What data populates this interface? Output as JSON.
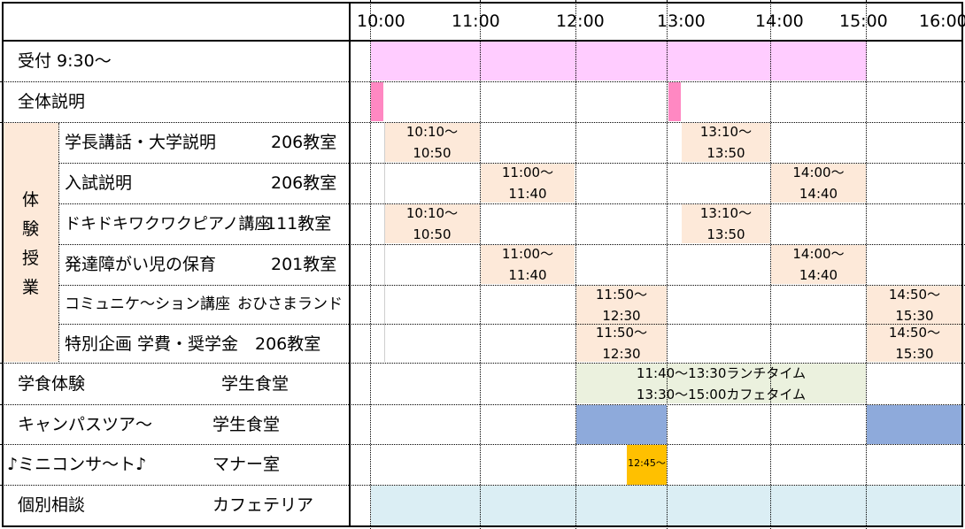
{
  "times": [
    "10:00",
    "11:00",
    "12:00",
    "13:00",
    "14:00",
    "15:00",
    "16:00"
  ],
  "rows": {
    "reception": "受付 9:30～",
    "overall": "全体説明",
    "taiken_label": [
      "体",
      "験",
      "授",
      "業"
    ],
    "lecture1": {
      "name": "学長講話・大学説明",
      "room": "206教室"
    },
    "lecture2": {
      "name": "入試説明",
      "room": "206教室"
    },
    "lecture3": {
      "name": "ドキドキワクワクピアノ講座",
      "room": "111教室"
    },
    "lecture4": {
      "name": "発達障がい児の保育",
      "room": "201教室"
    },
    "lecture5": {
      "name": "コミュニケ～ション講座",
      "room": "おひさまランド"
    },
    "lecture6": {
      "name": "特別企画 学費・奨学金",
      "room": "206教室"
    },
    "cafeteria": {
      "name": "学食体験",
      "room": "学生食堂"
    },
    "tour": {
      "name": "キャンパスツア～",
      "room": "学生食堂"
    },
    "concert": {
      "name": "♪ミニコンサ～ト♪",
      "room": "マナー室"
    },
    "consult": {
      "name": "個別相談",
      "room": "カフェテリア"
    }
  },
  "slots": {
    "s1010": [
      "10:10～",
      "10:50"
    ],
    "s1310": [
      "13:10～",
      "13:50"
    ],
    "s1100": [
      "11:00～",
      "11:40"
    ],
    "s1400": [
      "14:00～",
      "14:40"
    ],
    "s1150": [
      "11:50～",
      "12:30"
    ],
    "s1450": [
      "14:50～",
      "15:30"
    ],
    "lunch": [
      "11:40～13:30ランチタイム",
      "13:30～15:00カフェタイム"
    ],
    "concert_time": "12:45～"
  },
  "colors": {
    "reception": "#ffccff",
    "overall": "#ff88c2",
    "lecture_label": "#fde9d9",
    "slot": "#fde9d9",
    "lunch": "#ebf1de",
    "tour": "#8eaadb",
    "concert": "#ffc000",
    "consult": "#dbeef4"
  }
}
